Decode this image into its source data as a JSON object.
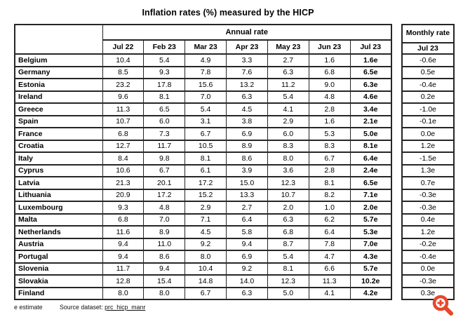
{
  "title": "Inflation rates (%) measured by the HICP",
  "table": {
    "annual_rate_label": "Annual rate",
    "monthly_rate_label": "Monthly rate",
    "monthly_sub_label": "Jul 23",
    "month_columns": [
      "Jul 22",
      "Feb 23",
      "Mar 23",
      "Apr 23",
      "May 23",
      "Jun 23",
      "Jul 23"
    ],
    "rows": [
      {
        "country": "Belgium",
        "annual": [
          "10.4",
          "5.4",
          "4.9",
          "3.3",
          "2.7",
          "1.6",
          "1.6e"
        ],
        "monthly": "-0.6e"
      },
      {
        "country": "Germany",
        "annual": [
          "8.5",
          "9.3",
          "7.8",
          "7.6",
          "6.3",
          "6.8",
          "6.5e"
        ],
        "monthly": "0.5e"
      },
      {
        "country": "Estonia",
        "annual": [
          "23.2",
          "17.8",
          "15.6",
          "13.2",
          "11.2",
          "9.0",
          "6.3e"
        ],
        "monthly": "-0.4e"
      },
      {
        "country": "Ireland",
        "annual": [
          "9.6",
          "8.1",
          "7.0",
          "6.3",
          "5.4",
          "4.8",
          "4.6e"
        ],
        "monthly": "0.2e"
      },
      {
        "country": "Greece",
        "annual": [
          "11.3",
          "6.5",
          "5.4",
          "4.5",
          "4.1",
          "2.8",
          "3.4e"
        ],
        "monthly": "-1.0e"
      },
      {
        "country": "Spain",
        "annual": [
          "10.7",
          "6.0",
          "3.1",
          "3.8",
          "2.9",
          "1.6",
          "2.1e"
        ],
        "monthly": "-0.1e"
      },
      {
        "country": "France",
        "annual": [
          "6.8",
          "7.3",
          "6.7",
          "6.9",
          "6.0",
          "5.3",
          "5.0e"
        ],
        "monthly": "0.0e"
      },
      {
        "country": "Croatia",
        "annual": [
          "12.7",
          "11.7",
          "10.5",
          "8.9",
          "8.3",
          "8.3",
          "8.1e"
        ],
        "monthly": "1.2e"
      },
      {
        "country": "Italy",
        "annual": [
          "8.4",
          "9.8",
          "8.1",
          "8.6",
          "8.0",
          "6.7",
          "6.4e"
        ],
        "monthly": "-1.5e"
      },
      {
        "country": "Cyprus",
        "annual": [
          "10.6",
          "6.7",
          "6.1",
          "3.9",
          "3.6",
          "2.8",
          "2.4e"
        ],
        "monthly": "1.3e"
      },
      {
        "country": "Latvia",
        "annual": [
          "21.3",
          "20.1",
          "17.2",
          "15.0",
          "12.3",
          "8.1",
          "6.5e"
        ],
        "monthly": "0.7e"
      },
      {
        "country": "Lithuania",
        "annual": [
          "20.9",
          "17.2",
          "15.2",
          "13.3",
          "10.7",
          "8.2",
          "7.1e"
        ],
        "monthly": "-0.3e"
      },
      {
        "country": "Luxembourg",
        "annual": [
          "9.3",
          "4.8",
          "2.9",
          "2.7",
          "2.0",
          "1.0",
          "2.0e"
        ],
        "monthly": "-0.3e"
      },
      {
        "country": "Malta",
        "annual": [
          "6.8",
          "7.0",
          "7.1",
          "6.4",
          "6.3",
          "6.2",
          "5.7e"
        ],
        "monthly": "0.4e"
      },
      {
        "country": "Netherlands",
        "annual": [
          "11.6",
          "8.9",
          "4.5",
          "5.8",
          "6.8",
          "6.4",
          "5.3e"
        ],
        "monthly": "1.2e"
      },
      {
        "country": "Austria",
        "annual": [
          "9.4",
          "11.0",
          "9.2",
          "9.4",
          "8.7",
          "7.8",
          "7.0e"
        ],
        "monthly": "-0.2e"
      },
      {
        "country": "Portugal",
        "annual": [
          "9.4",
          "8.6",
          "8.0",
          "6.9",
          "5.4",
          "4.7",
          "4.3e"
        ],
        "monthly": "-0.4e"
      },
      {
        "country": "Slovenia",
        "annual": [
          "11.7",
          "9.4",
          "10.4",
          "9.2",
          "8.1",
          "6.6",
          "5.7e"
        ],
        "monthly": "0.0e"
      },
      {
        "country": "Slovakia",
        "annual": [
          "12.8",
          "15.4",
          "14.8",
          "14.0",
          "12.3",
          "11.3",
          "10.2e"
        ],
        "monthly": "-0.3e"
      },
      {
        "country": "Finland",
        "annual": [
          "8.0",
          "8.0",
          "6.7",
          "6.3",
          "5.0",
          "4.1",
          "4.2e"
        ],
        "monthly": "0.3e"
      }
    ]
  },
  "footer": {
    "estimate_note": "e estimate",
    "source_label": "Source dataset:",
    "source_link": "prc_hicp_manr"
  },
  "icons": {
    "zoom_in_color": "#e8472b"
  }
}
